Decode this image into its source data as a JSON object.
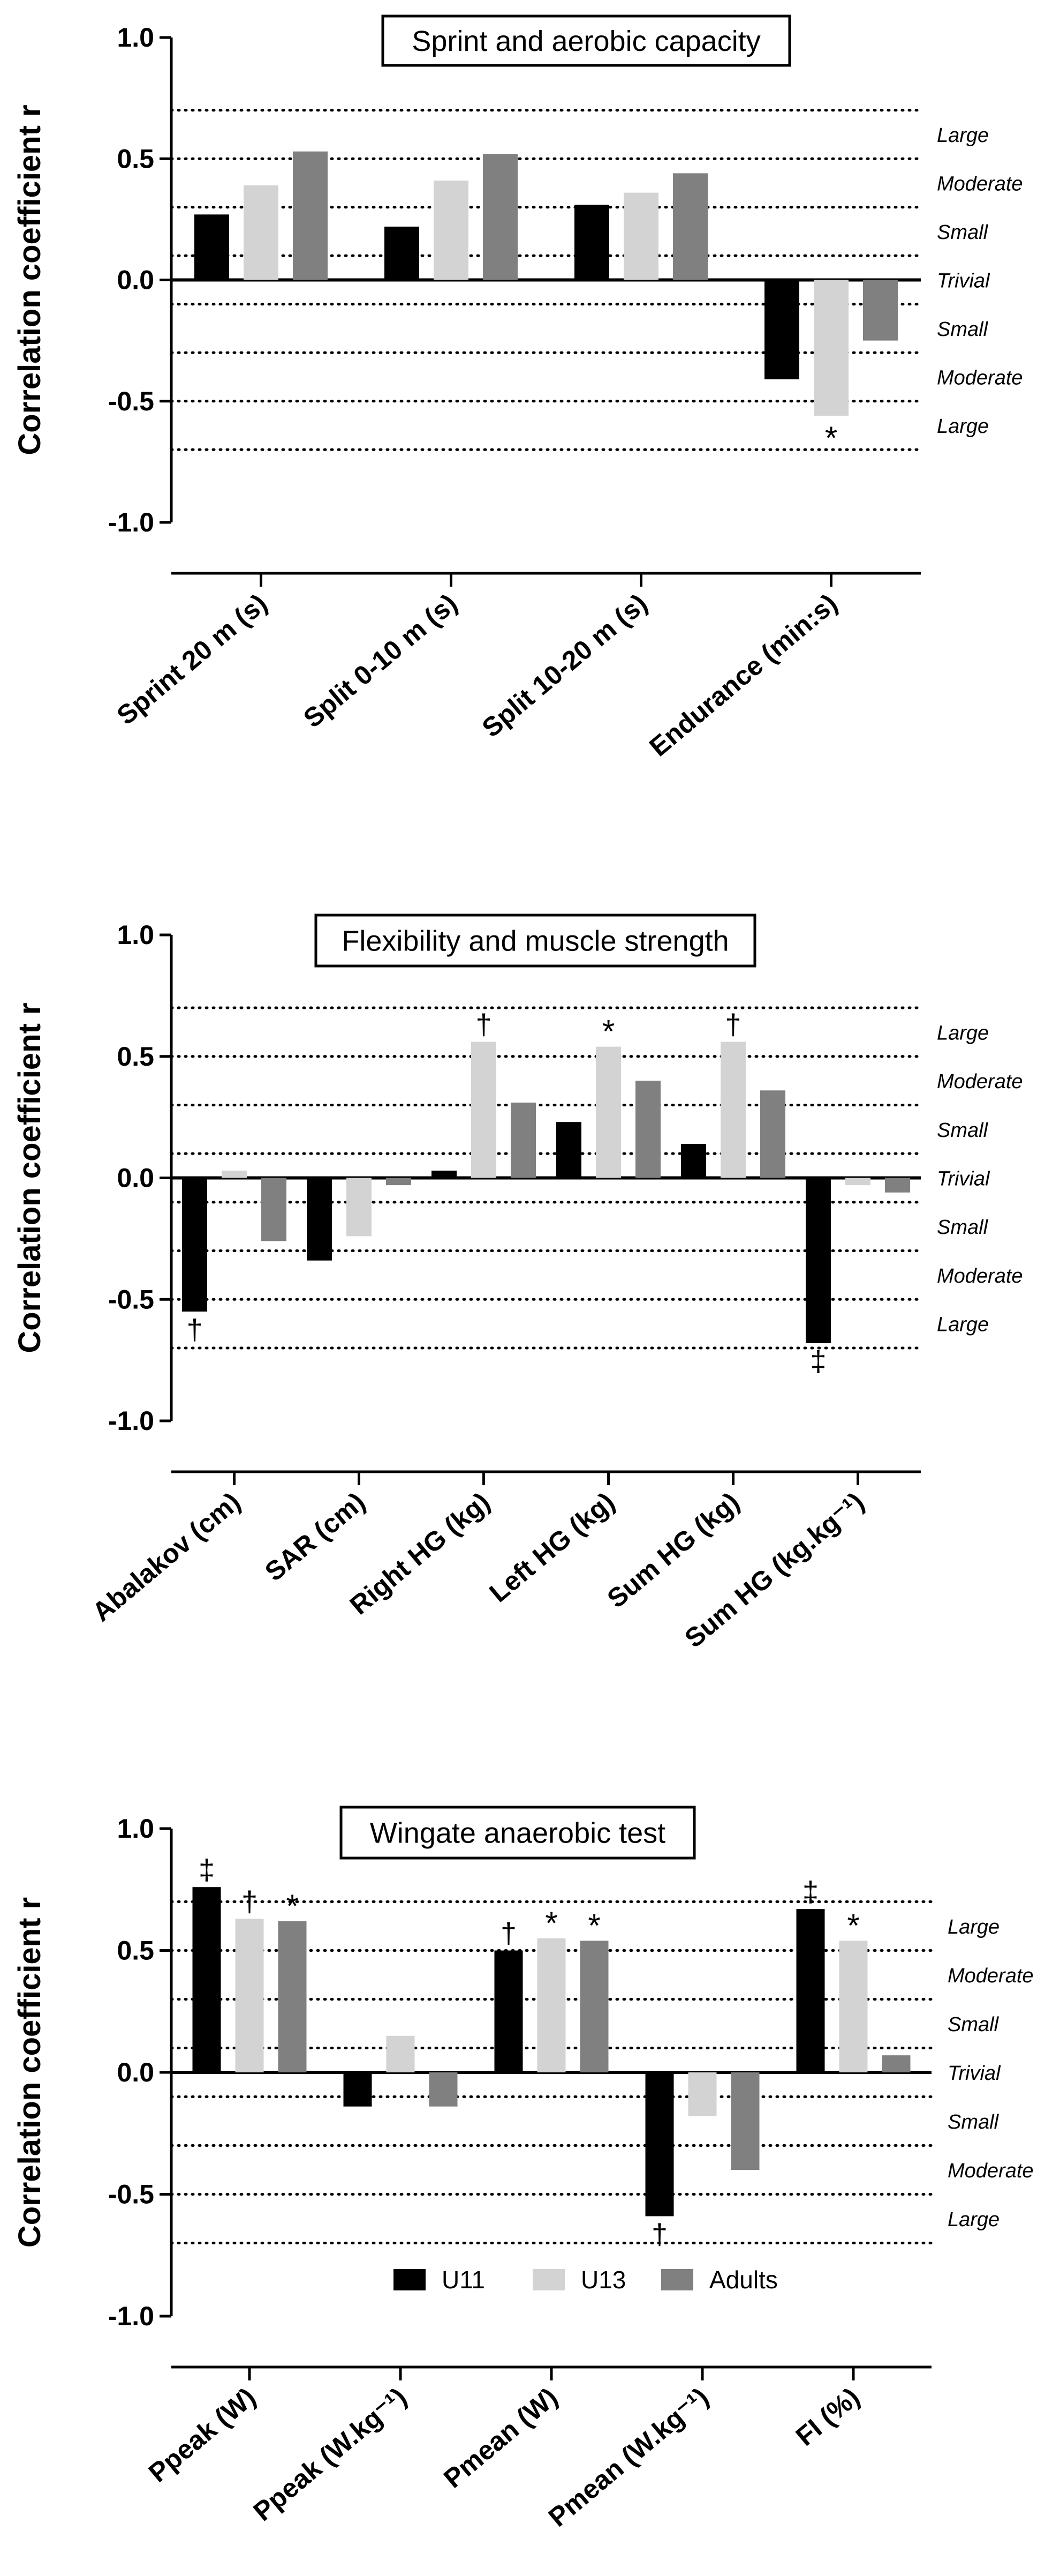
{
  "colors": {
    "U11": "#000000",
    "U13": "#d3d3d3",
    "Adults": "#808080",
    "axis": "#000000"
  },
  "legend": {
    "labels": [
      "U11",
      "U13",
      "Adults"
    ]
  },
  "zones": [
    {
      "label": "Large",
      "y": 0.6
    },
    {
      "label": "Moderate",
      "y": 0.4
    },
    {
      "label": "Small",
      "y": 0.2
    },
    {
      "label": "Trivial",
      "y": 0.0
    },
    {
      "label": "Small",
      "y": -0.2
    },
    {
      "label": "Moderate",
      "y": -0.4
    },
    {
      "label": "Large",
      "y": -0.6
    }
  ],
  "threshold_lines": [
    0.7,
    0.5,
    0.3,
    0.1,
    -0.1,
    -0.3,
    -0.5,
    -0.7
  ],
  "chart_data": [
    {
      "type": "bar",
      "title": "Sprint and aerobic capacity",
      "ylabel": "Correlation coefficient r",
      "ylim": [
        -1.0,
        1.0
      ],
      "yticks": [
        "1.0",
        "0.5",
        "0.0",
        "-0.5",
        "-1.0"
      ],
      "categories": [
        "Sprint 20 m (s)",
        "Split 0-10 m (s)",
        "Split 10-20 m (s)",
        "Endurance (min:s)"
      ],
      "series": [
        {
          "name": "U11",
          "values": [
            0.27,
            0.22,
            0.31,
            -0.41
          ]
        },
        {
          "name": "U13",
          "values": [
            0.39,
            0.41,
            0.36,
            -0.56
          ]
        },
        {
          "name": "Adults",
          "values": [
            0.53,
            0.52,
            0.44,
            -0.25
          ]
        }
      ],
      "annotations": [
        {
          "category": 3,
          "series": 1,
          "text": "*"
        }
      ]
    },
    {
      "type": "bar",
      "title": "Flexibility and muscle strength",
      "ylabel": "Correlation coefficient r",
      "ylim": [
        -1.0,
        1.0
      ],
      "yticks": [
        "1.0",
        "0.5",
        "0.0",
        "-0.5",
        "-1.0"
      ],
      "categories": [
        "Abalakov (cm)",
        "SAR (cm)",
        "Right HG (kg)",
        "Left HG (kg)",
        "Sum HG (kg)",
        "Sum HG (kg.kg⁻¹)"
      ],
      "series": [
        {
          "name": "U11",
          "values": [
            -0.55,
            -0.34,
            0.03,
            0.23,
            0.14,
            -0.68
          ]
        },
        {
          "name": "U13",
          "values": [
            0.03,
            -0.24,
            0.56,
            0.54,
            0.56,
            -0.03
          ]
        },
        {
          "name": "Adults",
          "values": [
            -0.26,
            -0.03,
            0.31,
            0.4,
            0.36,
            -0.06
          ]
        }
      ],
      "annotations": [
        {
          "category": 0,
          "series": 0,
          "text": "†"
        },
        {
          "category": 2,
          "series": 1,
          "text": "†"
        },
        {
          "category": 3,
          "series": 1,
          "text": "*"
        },
        {
          "category": 4,
          "series": 1,
          "text": "†"
        },
        {
          "category": 5,
          "series": 0,
          "text": "‡"
        }
      ]
    },
    {
      "type": "bar",
      "title": "Wingate anaerobic test",
      "ylabel": "Correlation coefficient r",
      "ylim": [
        -1.0,
        1.0
      ],
      "yticks": [
        "1.0",
        "0.5",
        "0.0",
        "-0.5",
        "-1.0"
      ],
      "categories": [
        "Ppeak (W)",
        "Ppeak (W.kg⁻¹)",
        "Pmean (W)",
        "Pmean (W.kg⁻¹)",
        "FI (%)"
      ],
      "series": [
        {
          "name": "U11",
          "values": [
            0.76,
            -0.14,
            0.5,
            -0.59,
            0.67
          ]
        },
        {
          "name": "U13",
          "values": [
            0.63,
            0.15,
            0.55,
            -0.18,
            0.54
          ]
        },
        {
          "name": "Adults",
          "values": [
            0.62,
            -0.14,
            0.54,
            -0.4,
            0.07
          ]
        }
      ],
      "annotations": [
        {
          "category": 0,
          "series": 0,
          "text": "‡"
        },
        {
          "category": 0,
          "series": 1,
          "text": "†"
        },
        {
          "category": 0,
          "series": 2,
          "text": "*"
        },
        {
          "category": 2,
          "series": 0,
          "text": "†"
        },
        {
          "category": 2,
          "series": 1,
          "text": "*"
        },
        {
          "category": 2,
          "series": 2,
          "text": "*"
        },
        {
          "category": 3,
          "series": 0,
          "text": "†"
        },
        {
          "category": 4,
          "series": 0,
          "text": "‡"
        },
        {
          "category": 4,
          "series": 1,
          "text": "*"
        }
      ]
    }
  ]
}
